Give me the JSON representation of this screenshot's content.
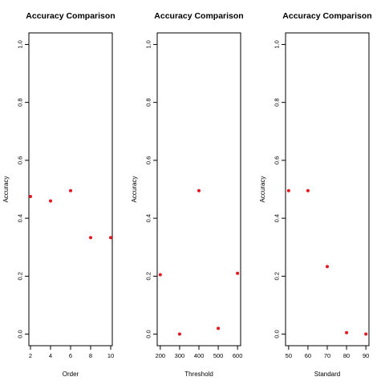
{
  "chart_data": [
    {
      "type": "scatter",
      "title": "Accuracy Comparison",
      "xlabel": "Order",
      "ylabel": "Accuracy",
      "x": [
        2,
        4,
        6,
        8,
        10
      ],
      "y": [
        0.475,
        0.46,
        0.495,
        0.333,
        0.333
      ],
      "xticks": [
        "2",
        "4",
        "6",
        "8",
        "10"
      ],
      "xtick_values": [
        2,
        4,
        6,
        8,
        10
      ],
      "yticks": [
        "0.0",
        "0.2",
        "0.4",
        "0.6",
        "0.8",
        "1.0"
      ],
      "ytick_values": [
        0,
        0.2,
        0.4,
        0.6,
        0.8,
        1.0
      ],
      "xlim": [
        1.84,
        10.16
      ],
      "ylim": [
        -0.04,
        1.04
      ],
      "point_color": "#e8141e",
      "grid": false
    },
    {
      "type": "scatter",
      "title": "Accuracy Comparison",
      "xlabel": "Threshold",
      "ylabel": "Accuracy",
      "x": [
        200,
        300,
        400,
        500,
        600
      ],
      "y": [
        0.205,
        0.0,
        0.495,
        0.02,
        0.21
      ],
      "xticks": [
        "200",
        "300",
        "400",
        "500",
        "600"
      ],
      "xtick_values": [
        200,
        300,
        400,
        500,
        600
      ],
      "yticks": [
        "0.0",
        "0.2",
        "0.4",
        "0.6",
        "0.8",
        "1.0"
      ],
      "ytick_values": [
        0,
        0.2,
        0.4,
        0.6,
        0.8,
        1.0
      ],
      "xlim": [
        184,
        616
      ],
      "ylim": [
        -0.04,
        1.04
      ],
      "point_color": "#e8141e",
      "grid": false
    },
    {
      "type": "scatter",
      "title": "Accuracy Comparison",
      "xlabel": "Standard",
      "ylabel": "Accuracy",
      "x": [
        50,
        60,
        70,
        80,
        90
      ],
      "y": [
        0.495,
        0.495,
        0.233,
        0.005,
        0.0
      ],
      "xticks": [
        "50",
        "60",
        "70",
        "80",
        "90"
      ],
      "xtick_values": [
        50,
        60,
        70,
        80,
        90
      ],
      "yticks": [
        "0.0",
        "0.2",
        "0.4",
        "0.6",
        "0.8",
        "1.0"
      ],
      "ytick_values": [
        0,
        0.2,
        0.4,
        0.6,
        0.8,
        1.0
      ],
      "xlim": [
        48.4,
        91.6
      ],
      "ylim": [
        -0.04,
        1.04
      ],
      "point_color": "#e8141e",
      "grid": false
    }
  ]
}
